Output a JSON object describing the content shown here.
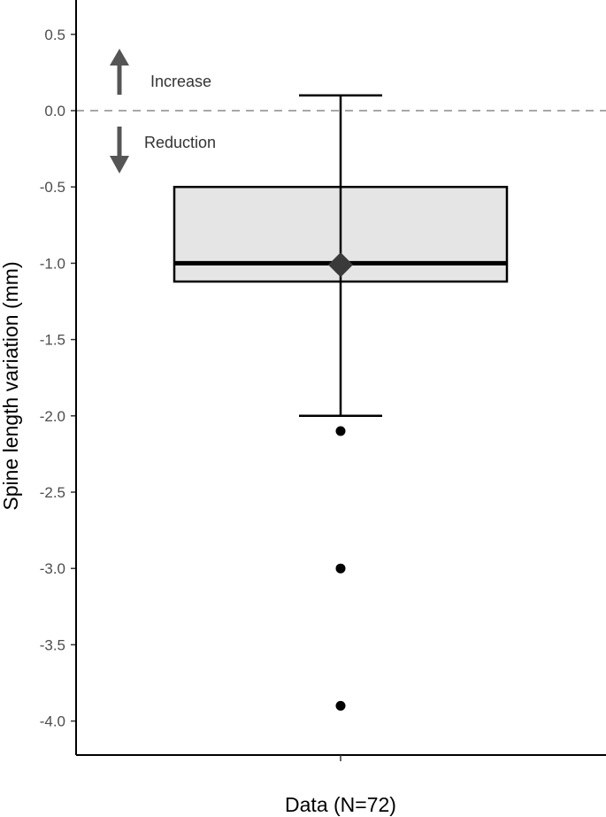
{
  "chart_data": {
    "type": "box",
    "ylabel": "Spine length variation (mm)",
    "xlabel": "Data (N=72)",
    "ylim": [
      -4.2,
      0.7
    ],
    "y_ticks": [
      0.5,
      0.0,
      -0.5,
      -1.0,
      -1.5,
      -2.0,
      -2.5,
      -3.0,
      -3.5,
      -4.0
    ],
    "y_tick_labels": [
      "0.5",
      "0.0",
      "-0.5",
      "-1.0",
      "-1.5",
      "-2.0",
      "-2.5",
      "-3.0",
      "-3.5",
      "-4.0"
    ],
    "reference_line": 0.0,
    "box": {
      "whisker_high": 0.1,
      "q3": -0.5,
      "median": -1.0,
      "mean": -1.01,
      "q1": -1.12,
      "whisker_low": -2.0,
      "outliers": [
        -2.1,
        -3.0,
        -3.9
      ]
    },
    "annotations": {
      "increase": "Increase",
      "reduction": "Reduction"
    },
    "grid": false,
    "legend": "none",
    "colors": {
      "box_fill": "#e5e5e5",
      "stroke": "#000000",
      "mean_marker": "#3a3a3a",
      "arrow": "#555555",
      "reference_line": "#a8a8a8"
    }
  }
}
